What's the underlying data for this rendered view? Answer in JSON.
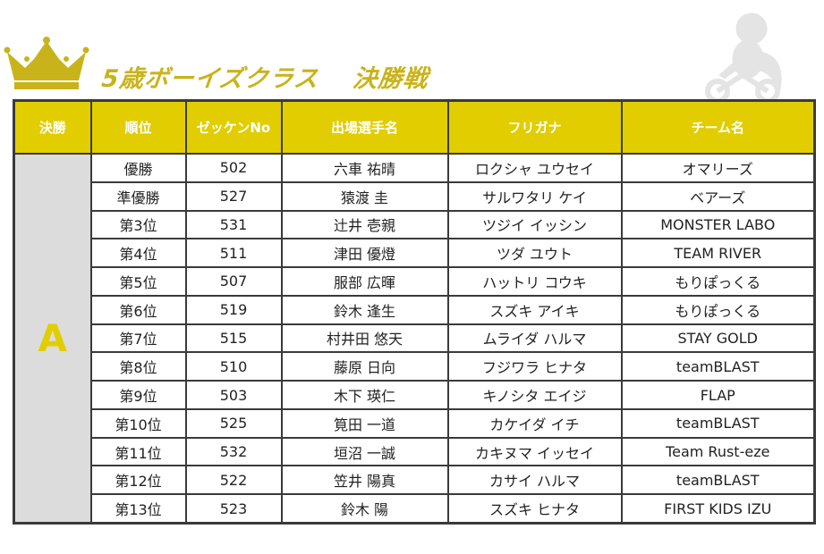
{
  "title": "5歳ボーイズクラス　 決勝戦",
  "colors": {
    "accent": "#e1cd00",
    "title": "#c9b31b",
    "border": "#3a3a3a",
    "group_bg": "#dcdcdc"
  },
  "icons": {
    "crown": "crown-icon",
    "rider": "balance-bike-rider-icon"
  },
  "table": {
    "headers": {
      "final": "決勝",
      "rank": "順位",
      "bib": "ゼッケンNo",
      "name": "出場選手名",
      "furigana": "フリガナ",
      "team": "チーム名"
    },
    "group": "A",
    "rows": [
      {
        "rank": "優勝",
        "bib": "502",
        "name": "六車 祐晴",
        "furigana": "ロクシャ ユウセイ",
        "team": "オマリーズ"
      },
      {
        "rank": "準優勝",
        "bib": "527",
        "name": "猿渡 圭",
        "furigana": "サルワタリ ケイ",
        "team": "ベアーズ"
      },
      {
        "rank": "第3位",
        "bib": "531",
        "name": "辻井 壱親",
        "furigana": "ツジイ イッシン",
        "team": "MONSTER LABO"
      },
      {
        "rank": "第4位",
        "bib": "511",
        "name": "津田 優燈",
        "furigana": "ツダ ユウト",
        "team": "TEAM RIVER"
      },
      {
        "rank": "第5位",
        "bib": "507",
        "name": "服部 広暉",
        "furigana": "ハットリ コウキ",
        "team": "もりぽっくる"
      },
      {
        "rank": "第6位",
        "bib": "519",
        "name": "鈴木 逢生",
        "furigana": "スズキ アイキ",
        "team": "もりぽっくる"
      },
      {
        "rank": "第7位",
        "bib": "515",
        "name": "村井田 悠天",
        "furigana": "ムライダ ハルマ",
        "team": "STAY GOLD"
      },
      {
        "rank": "第8位",
        "bib": "510",
        "name": "藤原 日向",
        "furigana": "フジワラ ヒナタ",
        "team": "teamBLAST"
      },
      {
        "rank": "第9位",
        "bib": "503",
        "name": "木下 瑛仁",
        "furigana": "キノシタ エイジ",
        "team": "FLAP"
      },
      {
        "rank": "第10位",
        "bib": "525",
        "name": "筧田 一道",
        "furigana": "カケイダ イチ",
        "team": "teamBLAST"
      },
      {
        "rank": "第11位",
        "bib": "532",
        "name": "垣沼 一誠",
        "furigana": "カキヌマ イッセイ",
        "team": "Team Rust-eze"
      },
      {
        "rank": "第12位",
        "bib": "522",
        "name": "笠井 陽真",
        "furigana": "カサイ ハルマ",
        "team": "teamBLAST"
      },
      {
        "rank": "第13位",
        "bib": "523",
        "name": "鈴木 陽",
        "furigana": "スズキ ヒナタ",
        "team": "FIRST KIDS IZU"
      }
    ]
  }
}
